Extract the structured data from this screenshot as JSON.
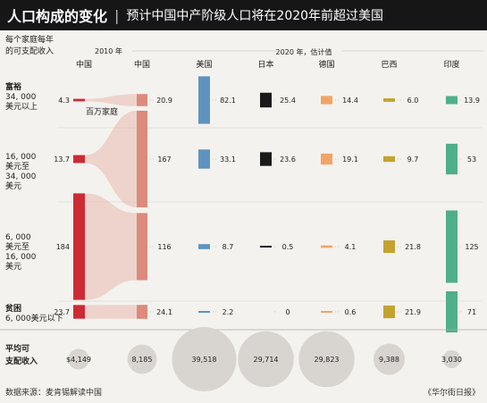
{
  "title": "人口构成的变化",
  "subtitle": "预计中国中产阶级人口将在2020年前超过美国",
  "header": {
    "row_label": [
      "每个家庭每年",
      "的可支配收入"
    ],
    "year_2010": "2010 年",
    "year_2020": "2020 年，估计值",
    "col_china_2010": "中国"
  },
  "source": "数据来源：麦肯锡解读中国",
  "credit": "《华尔街日报》",
  "colors": {
    "china_2010": "#cc2b34",
    "flow": "#e09a8c",
    "中国": "#dc8a7b",
    "美国": "#5f93bf",
    "日本": "#1a1a1a",
    "德国": "#f2a467",
    "巴西": "#c3a330",
    "印度": "#4faf8a",
    "circle": "#d8d5d0"
  },
  "chart_data": {
    "type": "table",
    "unit": "百万家庭",
    "brackets": [
      {
        "key": "wealthy",
        "label_lines": [
          "富裕",
          "34, 000",
          "美元以上"
        ]
      },
      {
        "key": "upper_middle",
        "label_lines": [
          "16, 000",
          "美元至",
          "34, 000",
          "美元"
        ]
      },
      {
        "key": "lower_middle",
        "label_lines": [
          "6, 000",
          "美元至",
          "16, 000",
          "美元"
        ]
      },
      {
        "key": "poor",
        "label_lines": [
          "贫困",
          "6, 000美元以下"
        ]
      }
    ],
    "china_2010": {
      "label": "中国",
      "values": [
        4.3,
        13.7,
        184,
        23.7
      ],
      "value_labels": [
        "4.3",
        "13.7",
        "184",
        "23.7"
      ]
    },
    "unit_note_bracket": 0,
    "countries_2020": [
      {
        "name": "中国",
        "values": [
          20.9,
          167,
          116,
          24.1
        ],
        "value_labels": [
          "20.9",
          "167",
          "116",
          "24.1"
        ]
      },
      {
        "name": "美国",
        "values": [
          82.1,
          33.1,
          8.7,
          2.2
        ],
        "value_labels": [
          "82.1",
          "33.1",
          "8.7",
          "2.2"
        ]
      },
      {
        "name": "日本",
        "values": [
          25.4,
          23.6,
          0.5,
          0
        ],
        "value_labels": [
          "25.4",
          "23.6",
          "0.5",
          "0"
        ]
      },
      {
        "name": "德国",
        "values": [
          14.4,
          19.1,
          4.1,
          0.6
        ],
        "value_labels": [
          "14.4",
          "19.1",
          "4.1",
          "0.6"
        ]
      },
      {
        "name": "巴西",
        "values": [
          6.0,
          9.7,
          21.8,
          21.9
        ],
        "value_labels": [
          "6.0",
          "9.7",
          "21.8",
          "21.9"
        ]
      },
      {
        "name": "印度",
        "values": [
          13.9,
          53,
          125,
          71
        ],
        "value_labels": [
          "13.9",
          "53",
          "125",
          "71"
        ]
      }
    ],
    "avg_income": {
      "label": [
        "平均可",
        "支配收入"
      ],
      "china_2010": {
        "value": 4149,
        "label": "$4,149"
      },
      "countries_2020": [
        {
          "name": "中国",
          "value": 8185,
          "label": "8,185"
        },
        {
          "name": "美国",
          "value": 39518,
          "label": "39,518"
        },
        {
          "name": "日本",
          "value": 29714,
          "label": "29,714"
        },
        {
          "name": "德国",
          "value": 29823,
          "label": "29,823"
        },
        {
          "name": "巴西",
          "value": 9388,
          "label": "9,388"
        },
        {
          "name": "印度",
          "value": 3030,
          "label": "3,030"
        }
      ]
    }
  }
}
